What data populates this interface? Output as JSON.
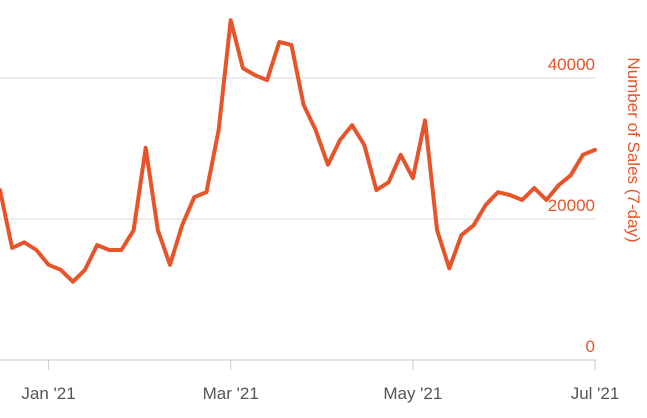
{
  "chart_data": {
    "type": "line",
    "y_axis_title": "Number of Sales (7-day)",
    "categories": [
      null,
      null,
      null,
      null,
      "Jan '21",
      null,
      null,
      null,
      null,
      null,
      null,
      null,
      null,
      null,
      null,
      null,
      null,
      null,
      null,
      "Mar '21",
      null,
      null,
      null,
      null,
      null,
      null,
      null,
      null,
      null,
      null,
      null,
      null,
      null,
      null,
      "May '21",
      null,
      null,
      null,
      null,
      null,
      null,
      null,
      null,
      null,
      null,
      null,
      null,
      null,
      null,
      "Jul '21"
    ],
    "series": [
      {
        "color": "#e8542a",
        "values": [
          24100,
          15900,
          16700,
          15600,
          13500,
          12800,
          11100,
          12800,
          16300,
          15600,
          15600,
          18400,
          30100,
          18400,
          13500,
          19100,
          23100,
          23800,
          32600,
          48200,
          41400,
          40400,
          39700,
          45100,
          44700,
          36200,
          32600,
          27700,
          31200,
          33300,
          30500,
          24100,
          25200,
          29100,
          25800,
          34000,
          18400,
          13000,
          17700,
          19100,
          22000,
          23800,
          23400,
          22700,
          24400,
          22700,
          24800,
          26200,
          29100,
          29800
        ]
      }
    ],
    "ylim": [
      0,
      50000
    ],
    "yticks": [
      0,
      20000,
      40000
    ],
    "grid": true,
    "y_axis_side": "right"
  }
}
